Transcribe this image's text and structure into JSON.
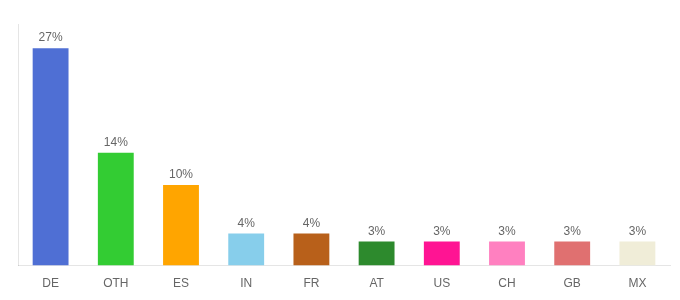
{
  "chart_data": {
    "type": "bar",
    "categories": [
      "DE",
      "OTH",
      "ES",
      "IN",
      "FR",
      "AT",
      "US",
      "CH",
      "GB",
      "MX"
    ],
    "values": [
      27,
      14,
      10,
      4,
      4,
      3,
      3,
      3,
      3,
      3
    ],
    "value_labels": [
      "27%",
      "14%",
      "10%",
      "4%",
      "4%",
      "3%",
      "3%",
      "3%",
      "3%",
      "3%"
    ],
    "colors": [
      "#4F6FD4",
      "#33CC33",
      "#FFA500",
      "#87CEEB",
      "#B8601A",
      "#2D8A2D",
      "#FF1493",
      "#FF80C0",
      "#E07070",
      "#F0EDD8"
    ],
    "ylim": [
      0,
      30
    ],
    "grid": false,
    "data_labels": true,
    "tick_labels": "x"
  }
}
